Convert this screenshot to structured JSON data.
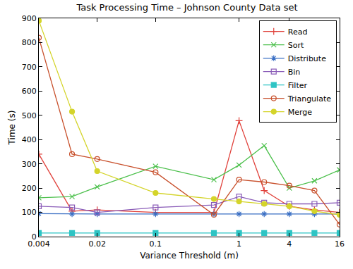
{
  "chart_data": {
    "type": "line",
    "title": "Task Processing Time – Johnson County Data set",
    "x_label": "Variance Threshold (m)",
    "y_label": "Time (s)",
    "log": "x",
    "grid": false,
    "legend": "top right",
    "x": [
      0.004,
      0.01,
      0.02,
      0.1,
      0.5,
      1,
      2,
      4,
      8,
      16
    ],
    "xlim": [
      0.004,
      16
    ],
    "xticks": [
      0.004,
      0.02,
      0.1,
      1,
      4,
      16
    ],
    "ylim": [
      0,
      900
    ],
    "yticks": [
      0,
      100,
      200,
      300,
      400,
      500,
      600,
      700,
      800,
      900
    ],
    "series": [
      {
        "name": "Read",
        "color": "#e0403a",
        "marker": "plus",
        "line_style": "solid",
        "values": [
          340,
          105,
          110,
          100,
          100,
          478,
          190,
          125,
          110,
          100
        ]
      },
      {
        "name": "Sort",
        "color": "#4cc04c",
        "marker": "x",
        "line_style": "solid",
        "values": [
          160,
          165,
          205,
          290,
          235,
          295,
          375,
          200,
          230,
          275
        ]
      },
      {
        "name": "Distribute",
        "color": "#3a6fc4",
        "marker": "asterisk",
        "line_style": "solid",
        "values": [
          95,
          93,
          93,
          93,
          93,
          93,
          93,
          93,
          93,
          93
        ]
      },
      {
        "name": "Bin",
        "color": "#8a5cb8",
        "marker": "square-open",
        "line_style": "solid",
        "values": [
          125,
          120,
          100,
          120,
          130,
          165,
          140,
          135,
          135,
          140
        ]
      },
      {
        "name": "Filter",
        "color": "#2ec4c4",
        "marker": "square",
        "line_style": "solid",
        "values": [
          15,
          15,
          15,
          15,
          15,
          15,
          15,
          15,
          15,
          15
        ]
      },
      {
        "name": "Triangulate",
        "color": "#c8502c",
        "marker": "circle-open",
        "line_style": "solid",
        "values": [
          820,
          340,
          320,
          265,
          90,
          235,
          225,
          210,
          190,
          50
        ]
      },
      {
        "name": "Merge",
        "color": "#d4d42a",
        "marker": "circle",
        "line_style": "solid",
        "values": [
          890,
          515,
          270,
          180,
          155,
          145,
          135,
          125,
          105,
          90
        ]
      }
    ]
  }
}
